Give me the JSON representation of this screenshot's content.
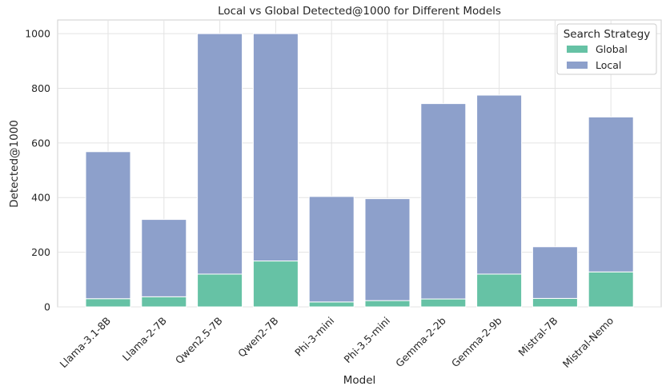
{
  "chart_data": {
    "type": "bar",
    "stacked": true,
    "title": "Local vs Global Detected@1000 for Different Models",
    "xlabel": "Model",
    "ylabel": "Detected@1000",
    "ylim": [
      0,
      1050
    ],
    "yticks": [
      0,
      200,
      400,
      600,
      800,
      1000
    ],
    "grid": true,
    "legend": {
      "title": "Search Strategy",
      "placement": "top-right"
    },
    "categories": [
      "Llama-3.1-8B",
      "Llama-2-7B",
      "Qwen2.5-7B",
      "Qwen2-7B",
      "Phi-3-mini",
      "Phi-3.5-mini",
      "Gemma-2-2b",
      "Gemma-2-9b",
      "Mistral-7B",
      "Mistral-Nemo"
    ],
    "series": [
      {
        "name": "Global",
        "color": "#66c2a5",
        "values": [
          30,
          37,
          120,
          168,
          18,
          23,
          29,
          120,
          31,
          128
        ]
      },
      {
        "name": "Local",
        "color": "#8da0cb",
        "values": [
          538,
          283,
          880,
          832,
          386,
          373,
          715,
          655,
          189,
          567
        ]
      }
    ]
  }
}
